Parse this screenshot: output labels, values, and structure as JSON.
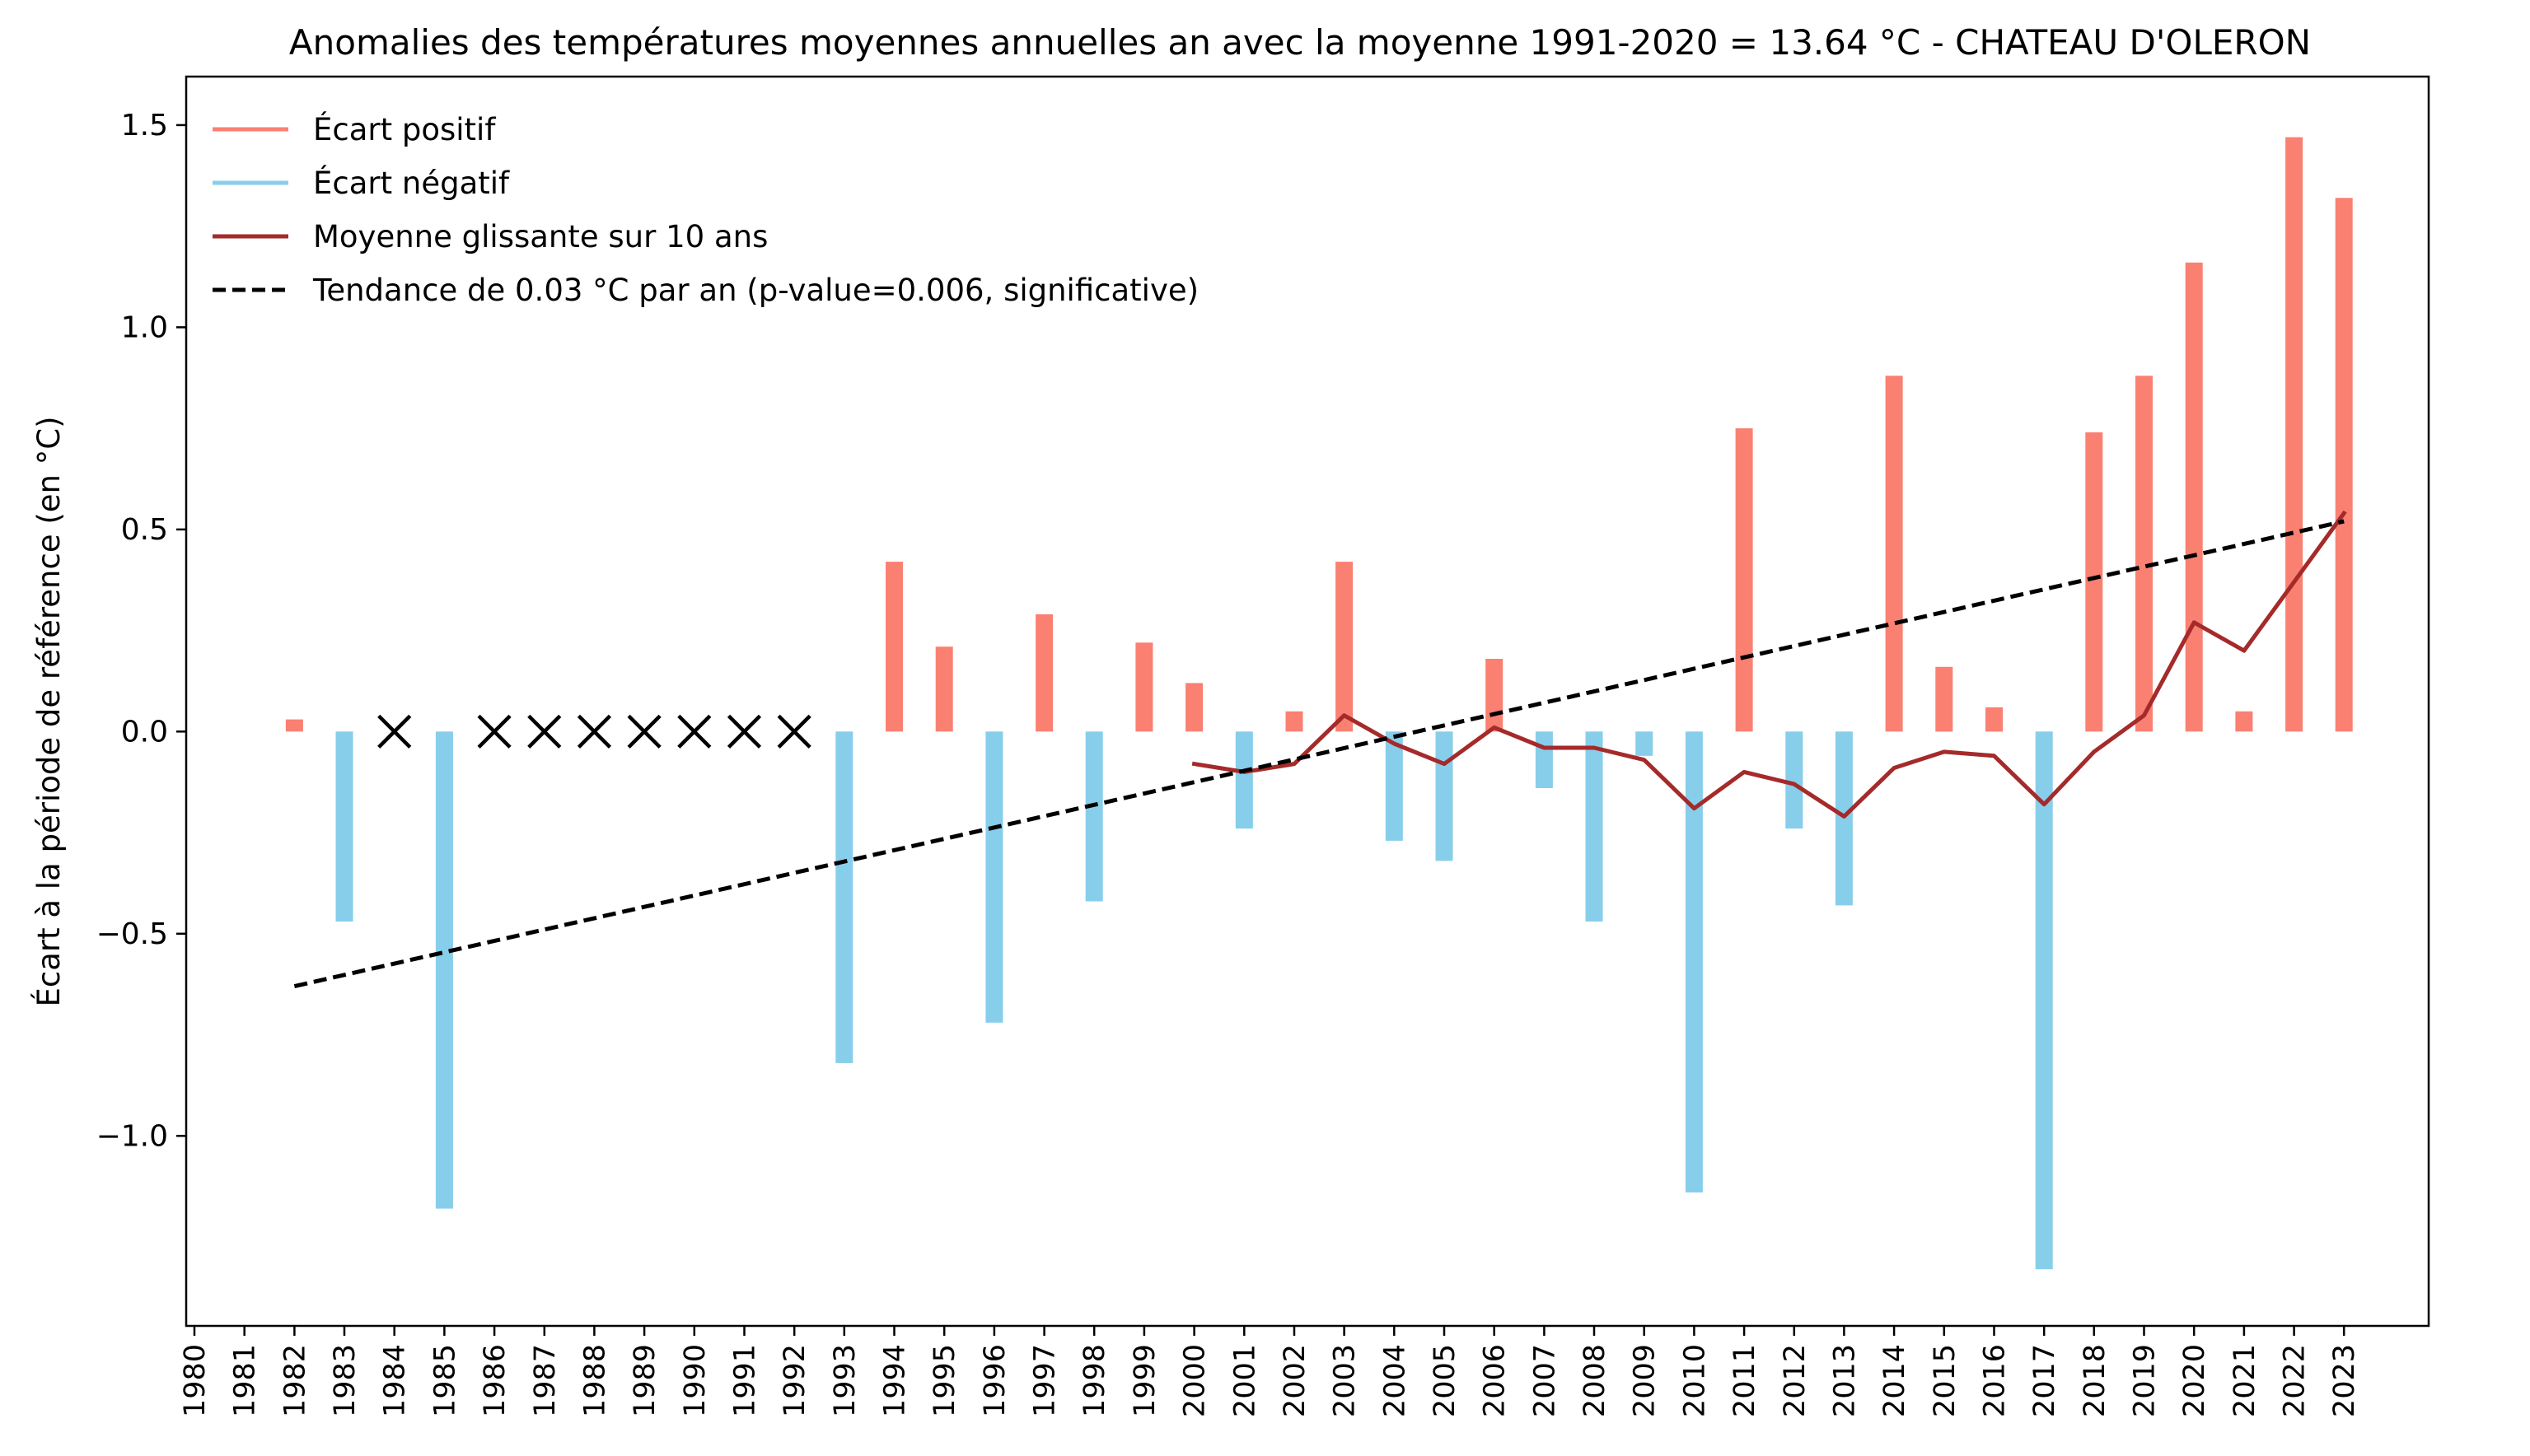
{
  "chart_data": {
    "type": "bar",
    "title": "Anomalies des températures moyennes annuelles an avec la moyenne 1991-2020 = 13.64 °C - CHATEAU D'OLERON",
    "xlabel": "",
    "ylabel": "Écart à la période de référence (en °C)",
    "xlim": [
      1979.8,
      2025.2
    ],
    "ylim": [
      -1.47,
      1.62
    ],
    "grid": false,
    "legend_position": "top-left",
    "years": [
      1980,
      1981,
      1982,
      1983,
      1984,
      1985,
      1986,
      1987,
      1988,
      1989,
      1990,
      1991,
      1992,
      1993,
      1994,
      1995,
      1996,
      1997,
      1998,
      1999,
      2000,
      2001,
      2002,
      2003,
      2004,
      2005,
      2006,
      2007,
      2008,
      2009,
      2010,
      2011,
      2012,
      2013,
      2014,
      2015,
      2016,
      2017,
      2018,
      2019,
      2020,
      2021,
      2022,
      2023
    ],
    "yticks": [
      -1.0,
      -0.5,
      0.0,
      0.5,
      1.0,
      1.5
    ],
    "ytick_labels": [
      "−1.0",
      "−0.5",
      "0.0",
      "0.5",
      "1.0",
      "1.5"
    ],
    "anomalies": [
      {
        "year": 1982,
        "value": 0.03
      },
      {
        "year": 1983,
        "value": -0.47
      },
      {
        "year": 1985,
        "value": -1.18
      },
      {
        "year": 1993,
        "value": -0.82
      },
      {
        "year": 1994,
        "value": 0.42
      },
      {
        "year": 1995,
        "value": 0.21
      },
      {
        "year": 1996,
        "value": -0.72
      },
      {
        "year": 1997,
        "value": 0.29
      },
      {
        "year": 1998,
        "value": -0.42
      },
      {
        "year": 1999,
        "value": 0.22
      },
      {
        "year": 2000,
        "value": 0.12
      },
      {
        "year": 2001,
        "value": -0.24
      },
      {
        "year": 2002,
        "value": 0.05
      },
      {
        "year": 2003,
        "value": 0.42
      },
      {
        "year": 2004,
        "value": -0.27
      },
      {
        "year": 2005,
        "value": -0.32
      },
      {
        "year": 2006,
        "value": 0.18
      },
      {
        "year": 2007,
        "value": -0.14
      },
      {
        "year": 2008,
        "value": -0.47
      },
      {
        "year": 2009,
        "value": -0.06
      },
      {
        "year": 2010,
        "value": -1.14
      },
      {
        "year": 2011,
        "value": 0.75
      },
      {
        "year": 2012,
        "value": -0.24
      },
      {
        "year": 2013,
        "value": -0.43
      },
      {
        "year": 2014,
        "value": 0.88
      },
      {
        "year": 2015,
        "value": 0.16
      },
      {
        "year": 2016,
        "value": 0.06
      },
      {
        "year": 2017,
        "value": -1.33
      },
      {
        "year": 2018,
        "value": 0.74
      },
      {
        "year": 2019,
        "value": 0.88
      },
      {
        "year": 2020,
        "value": 1.16
      },
      {
        "year": 2021,
        "value": 0.05
      },
      {
        "year": 2022,
        "value": 1.47
      },
      {
        "year": 2023,
        "value": 1.32
      }
    ],
    "missing_years": [
      1984,
      1986,
      1987,
      1988,
      1989,
      1990,
      1991,
      1992
    ],
    "rolling_mean": [
      {
        "year": 2000,
        "value": -0.08
      },
      {
        "year": 2001,
        "value": -0.1
      },
      {
        "year": 2002,
        "value": -0.08
      },
      {
        "year": 2003,
        "value": 0.04
      },
      {
        "year": 2004,
        "value": -0.03
      },
      {
        "year": 2005,
        "value": -0.08
      },
      {
        "year": 2006,
        "value": 0.01
      },
      {
        "year": 2007,
        "value": -0.04
      },
      {
        "year": 2008,
        "value": -0.04
      },
      {
        "year": 2009,
        "value": -0.07
      },
      {
        "year": 2010,
        "value": -0.19
      },
      {
        "year": 2011,
        "value": -0.1
      },
      {
        "year": 2012,
        "value": -0.13
      },
      {
        "year": 2013,
        "value": -0.21
      },
      {
        "year": 2014,
        "value": -0.09
      },
      {
        "year": 2015,
        "value": -0.05
      },
      {
        "year": 2016,
        "value": -0.06
      },
      {
        "year": 2017,
        "value": -0.18
      },
      {
        "year": 2018,
        "value": -0.05
      },
      {
        "year": 2019,
        "value": 0.04
      },
      {
        "year": 2020,
        "value": 0.27
      },
      {
        "year": 2021,
        "value": 0.2
      },
      {
        "year": 2022,
        "value": 0.37
      },
      {
        "year": 2023,
        "value": 0.54
      }
    ],
    "trend": {
      "x": [
        1982,
        2023
      ],
      "y": [
        -0.63,
        0.52
      ]
    },
    "colors": {
      "positive": "#fa8072",
      "negative": "#87ceeb",
      "rolling": "#a52a2a",
      "trend": "#000000",
      "missing_marker": "#000000"
    },
    "legend": [
      {
        "label": "Écart positif",
        "color": "#fa8072",
        "style": "solid"
      },
      {
        "label": "Écart négatif",
        "color": "#87ceeb",
        "style": "solid"
      },
      {
        "label": "Moyenne glissante sur 10 ans",
        "color": "#a52a2a",
        "style": "solid"
      },
      {
        "label": "Tendance de 0.03 °C par an (p-value=0.006, significative)",
        "color": "#000000",
        "style": "dashed"
      }
    ]
  }
}
